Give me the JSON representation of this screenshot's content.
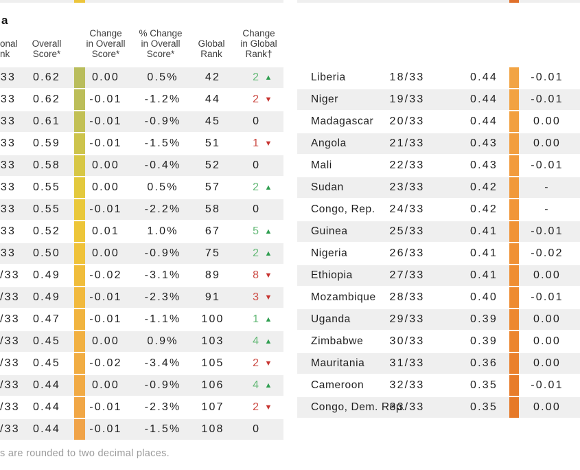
{
  "page": {
    "title_fragment": "a",
    "footnote_fragment": "s are rounded to two decimal places."
  },
  "colors": {
    "row_shade": "#efefef",
    "text": "#1e1e1e",
    "header_text": "#3c3c3c",
    "up_num": "#64b977",
    "up_arrow": "#2f9e50",
    "down_num": "#cc4b44",
    "down_arrow": "#c7332f",
    "zero_num": "#1e1e1e",
    "top_sliver_left_swatch": "#ecc53c",
    "top_sliver_right_swatch": "#e0702b"
  },
  "left_table": {
    "first_row_shaded": true,
    "headers": {
      "regional_rank": [
        "onal",
        "nk"
      ],
      "overall_score": [
        "Overall",
        "Score*"
      ],
      "change_overall": [
        "Change",
        "in Overall",
        "Score*"
      ],
      "pct_change_overall": [
        "% Change",
        "in Overall",
        "Score*"
      ],
      "global_rank": [
        "Global",
        "Rank"
      ],
      "change_global_rank": [
        "Change",
        "in Global",
        "Rank†"
      ]
    },
    "rows": [
      {
        "rank": "33",
        "score": "0.62",
        "swatch": "#b9bd5c",
        "change": "0.00",
        "pct": "0.5%",
        "global": "42",
        "delta": "2",
        "dir": "up"
      },
      {
        "rank": "33",
        "score": "0.62",
        "swatch": "#bcbe59",
        "change": "-0.01",
        "pct": "-1.2%",
        "global": "44",
        "delta": "2",
        "dir": "down"
      },
      {
        "rank": "33",
        "score": "0.61",
        "swatch": "#c2c054",
        "change": "-0.01",
        "pct": "-0.9%",
        "global": "45",
        "delta": "0",
        "dir": "none"
      },
      {
        "rank": "33",
        "score": "0.59",
        "swatch": "#cdc44c",
        "change": "-0.01",
        "pct": "-1.5%",
        "global": "51",
        "delta": "1",
        "dir": "down"
      },
      {
        "rank": "33",
        "score": "0.58",
        "swatch": "#d7c745",
        "change": "0.00",
        "pct": "-0.4%",
        "global": "52",
        "delta": "0",
        "dir": "none"
      },
      {
        "rank": "33",
        "score": "0.55",
        "swatch": "#e3c93d",
        "change": "0.00",
        "pct": "0.5%",
        "global": "57",
        "delta": "2",
        "dir": "up"
      },
      {
        "rank": "33",
        "score": "0.55",
        "swatch": "#e9c83a",
        "change": "-0.01",
        "pct": "-2.2%",
        "global": "58",
        "delta": "0",
        "dir": "none"
      },
      {
        "rank": "33",
        "score": "0.52",
        "swatch": "#edc639",
        "change": "0.01",
        "pct": "1.0%",
        "global": "67",
        "delta": "5",
        "dir": "up"
      },
      {
        "rank": "33",
        "score": "0.50",
        "swatch": "#efc239",
        "change": "0.00",
        "pct": "-0.9%",
        "global": "75",
        "delta": "2",
        "dir": "up"
      },
      {
        "rank": "/33",
        "score": "0.49",
        "swatch": "#f0bd3b",
        "change": "-0.02",
        "pct": "-3.1%",
        "global": "89",
        "delta": "8",
        "dir": "down"
      },
      {
        "rank": "/33",
        "score": "0.49",
        "swatch": "#f1b93d",
        "change": "-0.01",
        "pct": "-2.3%",
        "global": "91",
        "delta": "3",
        "dir": "down"
      },
      {
        "rank": "/33",
        "score": "0.47",
        "swatch": "#f1b43f",
        "change": "-0.01",
        "pct": "-1.1%",
        "global": "100",
        "delta": "1",
        "dir": "up"
      },
      {
        "rank": "/33",
        "score": "0.45",
        "swatch": "#f1b041",
        "change": "0.00",
        "pct": "0.9%",
        "global": "103",
        "delta": "4",
        "dir": "up"
      },
      {
        "rank": "/33",
        "score": "0.45",
        "swatch": "#f1ad43",
        "change": "-0.02",
        "pct": "-3.4%",
        "global": "105",
        "delta": "2",
        "dir": "down"
      },
      {
        "rank": "/33",
        "score": "0.44",
        "swatch": "#f1aa44",
        "change": "0.00",
        "pct": "-0.9%",
        "global": "106",
        "delta": "4",
        "dir": "up"
      },
      {
        "rank": "/33",
        "score": "0.44",
        "swatch": "#f1a746",
        "change": "-0.01",
        "pct": "-2.3%",
        "global": "107",
        "delta": "2",
        "dir": "down"
      },
      {
        "rank": "/33",
        "score": "0.44",
        "swatch": "#f0a348",
        "change": "-0.01",
        "pct": "-1.5%",
        "global": "108",
        "delta": "0",
        "dir": "none"
      }
    ]
  },
  "right_table": {
    "first_row_shaded": false,
    "rows": [
      {
        "country": "Liberia",
        "rank": "18/33",
        "score": "0.44",
        "swatch": "#f2a444",
        "change": "-0.01"
      },
      {
        "country": "Niger",
        "rank": "19/33",
        "score": "0.44",
        "swatch": "#f2a242",
        "change": "-0.01"
      },
      {
        "country": "Madagascar",
        "rank": "20/33",
        "score": "0.44",
        "swatch": "#f2a040",
        "change": "0.00"
      },
      {
        "country": "Angola",
        "rank": "21/33",
        "score": "0.43",
        "swatch": "#f29e3e",
        "change": "0.00"
      },
      {
        "country": "Mali",
        "rank": "22/33",
        "score": "0.43",
        "swatch": "#f29b3c",
        "change": "-0.01"
      },
      {
        "country": "Sudan",
        "rank": "23/33",
        "score": "0.42",
        "swatch": "#f1993a",
        "change": "-"
      },
      {
        "country": "Congo, Rep.",
        "rank": "24/33",
        "score": "0.42",
        "swatch": "#f19638",
        "change": "-"
      },
      {
        "country": "Guinea",
        "rank": "25/33",
        "score": "0.41",
        "swatch": "#f09336",
        "change": "-0.01"
      },
      {
        "country": "Nigeria",
        "rank": "26/33",
        "score": "0.41",
        "swatch": "#f09134",
        "change": "-0.02"
      },
      {
        "country": "Ethiopia",
        "rank": "27/33",
        "score": "0.41",
        "swatch": "#ef8e32",
        "change": "0.00"
      },
      {
        "country": "Mozambique",
        "rank": "28/33",
        "score": "0.40",
        "swatch": "#ee8b30",
        "change": "-0.01"
      },
      {
        "country": "Uganda",
        "rank": "29/33",
        "score": "0.39",
        "swatch": "#ed8830",
        "change": "0.00"
      },
      {
        "country": "Zimbabwe",
        "rank": "30/33",
        "score": "0.39",
        "swatch": "#ec852e",
        "change": "0.00"
      },
      {
        "country": "Mauritania",
        "rank": "31/33",
        "score": "0.36",
        "swatch": "#ea802c",
        "change": "0.00"
      },
      {
        "country": "Cameroon",
        "rank": "32/33",
        "score": "0.35",
        "swatch": "#e87c2a",
        "change": "-0.01"
      },
      {
        "country": "Congo, Dem. Rep.",
        "rank": "33/33",
        "score": "0.35",
        "swatch": "#e67928",
        "change": "0.00"
      }
    ]
  }
}
